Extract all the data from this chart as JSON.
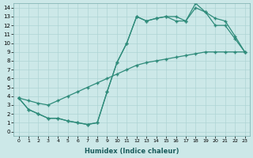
{
  "xlabel": "Humidex (Indice chaleur)",
  "xlim": [
    -0.5,
    23.5
  ],
  "ylim": [
    -0.5,
    14.5
  ],
  "xticks": [
    0,
    1,
    2,
    3,
    4,
    5,
    6,
    7,
    8,
    9,
    10,
    11,
    12,
    13,
    14,
    15,
    16,
    17,
    18,
    19,
    20,
    21,
    22,
    23
  ],
  "yticks": [
    0,
    1,
    2,
    3,
    4,
    5,
    6,
    7,
    8,
    9,
    10,
    11,
    12,
    13,
    14
  ],
  "line_color": "#2e8b7a",
  "bg_color": "#cce8e8",
  "grid_color": "#aed4d4",
  "line_straight": [
    3.8,
    3.5,
    3.2,
    3.0,
    3.5,
    4.0,
    4.5,
    5.0,
    5.5,
    6.0,
    6.5,
    7.0,
    7.5,
    7.8,
    8.0,
    8.2,
    8.4,
    8.6,
    8.8,
    9.0,
    9.0,
    9.0,
    9.0,
    9.0
  ],
  "line_upper": [
    3.8,
    2.5,
    2.0,
    1.5,
    1.5,
    1.2,
    1.0,
    0.8,
    1.0,
    4.5,
    7.8,
    10.0,
    13.0,
    12.5,
    12.8,
    13.0,
    13.0,
    12.5,
    14.5,
    13.5,
    12.8,
    12.5,
    10.8,
    9.0
  ],
  "line_middle": [
    3.8,
    2.5,
    2.0,
    1.5,
    1.5,
    1.2,
    1.0,
    0.8,
    1.0,
    4.5,
    7.8,
    10.0,
    13.0,
    12.5,
    12.8,
    13.0,
    12.5,
    12.5,
    14.0,
    13.5,
    12.0,
    12.0,
    10.5,
    9.0
  ]
}
